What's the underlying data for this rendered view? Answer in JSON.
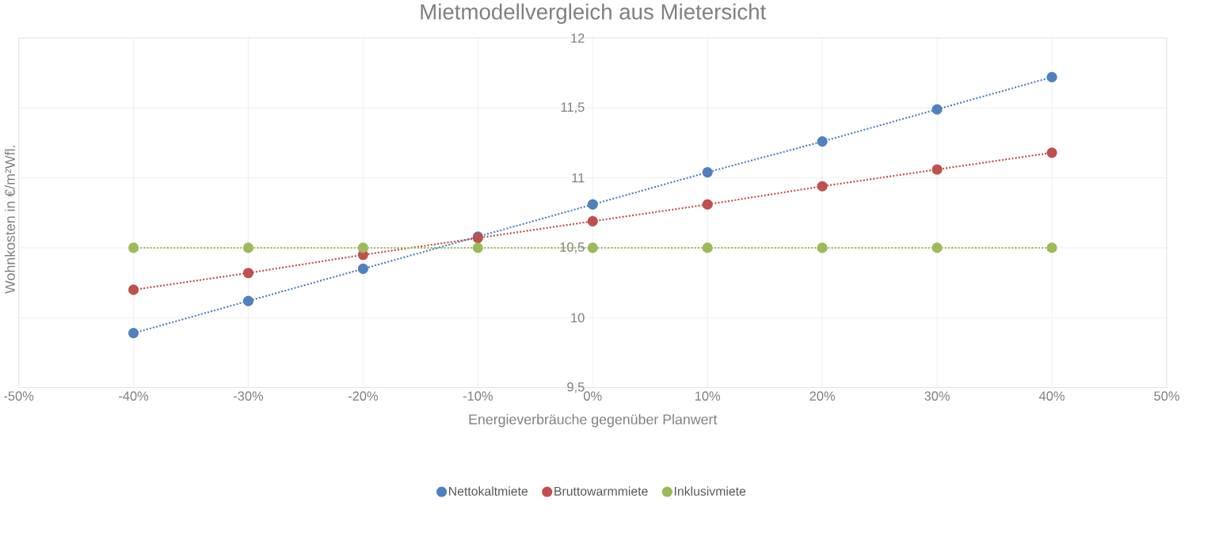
{
  "chart_data": {
    "type": "line",
    "title": "Mietmodellvergleich aus Mietersicht",
    "xlabel": "Energieverbräuche gegenüber Planwert",
    "ylabel": "Wohnkosten in €/m²Wfl.",
    "x": [
      -40,
      -30,
      -20,
      -10,
      0,
      10,
      20,
      30,
      40
    ],
    "series": [
      {
        "name": "Nettokaltmiete",
        "color": "#4f81bd",
        "values": [
          9.89,
          10.12,
          10.35,
          10.58,
          10.81,
          11.04,
          11.26,
          11.49,
          11.72
        ]
      },
      {
        "name": "Bruttowarmmiete",
        "color": "#c0504d",
        "values": [
          10.2,
          10.32,
          10.45,
          10.57,
          10.69,
          10.81,
          10.94,
          11.06,
          11.18
        ]
      },
      {
        "name": "Inklusivmiete",
        "color": "#9bbb59",
        "values": [
          10.5,
          10.5,
          10.5,
          10.5,
          10.5,
          10.5,
          10.5,
          10.5,
          10.5
        ]
      }
    ],
    "xlim": [
      -50,
      50
    ],
    "xticks": [
      {
        "value": -50,
        "label": "-50%"
      },
      {
        "value": -40,
        "label": "-40%"
      },
      {
        "value": -30,
        "label": "-30%"
      },
      {
        "value": -20,
        "label": "-20%"
      },
      {
        "value": -10,
        "label": "-10%"
      },
      {
        "value": 0,
        "label": "0%"
      },
      {
        "value": 10,
        "label": "10%"
      },
      {
        "value": 20,
        "label": "20%"
      },
      {
        "value": 30,
        "label": "30%"
      },
      {
        "value": 40,
        "label": "40%"
      },
      {
        "value": 50,
        "label": "50%"
      }
    ],
    "ylim": [
      9.5,
      12
    ],
    "yticks": [
      {
        "value": 9.5,
        "label": "9,5"
      },
      10,
      {
        "value": 10.5,
        "label": "10,5"
      },
      11,
      {
        "value": 11.5,
        "label": "11,5"
      },
      12
    ],
    "grid": true,
    "legend": "bottom",
    "marker": "circle",
    "line_style": "dotted"
  }
}
